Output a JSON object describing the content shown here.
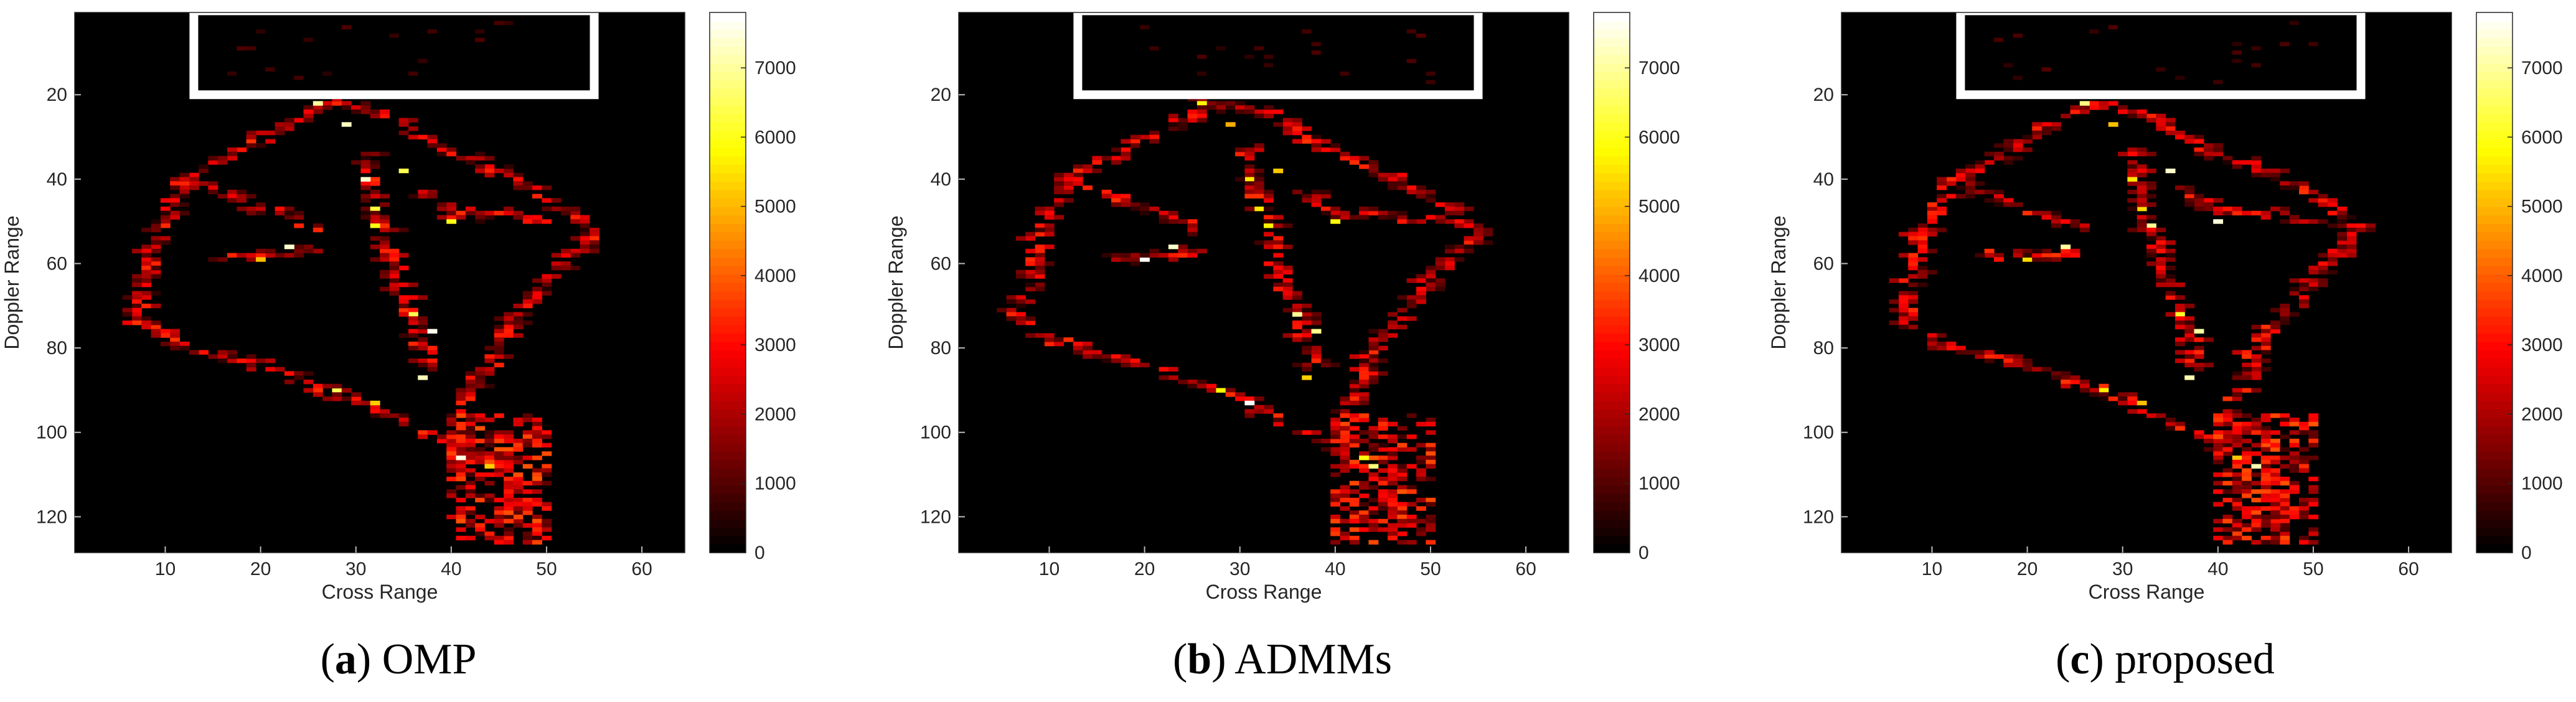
{
  "chart_data": [
    {
      "type": "heatmap",
      "caption_letter": "a",
      "caption_text": " OMP",
      "xlabel": "Cross Range",
      "ylabel": "Doppler Range",
      "xlim": [
        0.5,
        64.5
      ],
      "ylim": [
        0.5,
        128.5
      ],
      "xticks": [
        10,
        20,
        30,
        40,
        50,
        60
      ],
      "yticks": [
        20,
        40,
        60,
        80,
        100,
        120
      ],
      "colorbar": {
        "min": 0,
        "max": 7800,
        "ticks": [
          0,
          1000,
          2000,
          3000,
          4000,
          5000,
          6000,
          7000
        ],
        "colormap": "hot"
      },
      "annotation_box": {
        "x": [
          13,
          55
        ],
        "y": [
          1,
          20
        ]
      },
      "variant_seed": 11
    },
    {
      "type": "heatmap",
      "caption_letter": "b",
      "caption_text": " ADMMs",
      "xlabel": "Cross Range",
      "ylabel": "Doppler Range",
      "xlim": [
        0.5,
        64.5
      ],
      "ylim": [
        0.5,
        128.5
      ],
      "xticks": [
        10,
        20,
        30,
        40,
        50,
        60
      ],
      "yticks": [
        20,
        40,
        60,
        80,
        100,
        120
      ],
      "colorbar": {
        "min": 0,
        "max": 7800,
        "ticks": [
          0,
          1000,
          2000,
          3000,
          4000,
          5000,
          6000,
          7000
        ],
        "colormap": "hot"
      },
      "annotation_box": {
        "x": [
          13,
          55
        ],
        "y": [
          1,
          20
        ]
      },
      "variant_seed": 23
    },
    {
      "type": "heatmap",
      "caption_letter": "c",
      "caption_text": " proposed",
      "xlabel": "Cross Range",
      "ylabel": "Doppler Range",
      "xlim": [
        0.5,
        64.5
      ],
      "ylim": [
        0.5,
        128.5
      ],
      "xticks": [
        10,
        20,
        30,
        40,
        50,
        60
      ],
      "yticks": [
        20,
        40,
        60,
        80,
        100,
        120
      ],
      "colorbar": {
        "min": 0,
        "max": 7800,
        "ticks": [
          0,
          1000,
          2000,
          3000,
          4000,
          5000,
          6000,
          7000
        ],
        "colormap": "hot"
      },
      "annotation_box": {
        "x": [
          13,
          55
        ],
        "y": [
          1,
          20
        ]
      },
      "variant_seed": 37
    }
  ],
  "scatterer_paths": [
    {
      "name": "left-outer-arc",
      "points": [
        [
          27,
          22
        ],
        [
          18,
          33
        ],
        [
          12,
          40
        ],
        [
          9,
          55
        ],
        [
          7,
          72
        ],
        [
          10,
          78
        ],
        [
          20,
          84
        ],
        [
          30,
          92
        ],
        [
          40,
          103
        ]
      ]
    },
    {
      "name": "right-outer-arc",
      "points": [
        [
          27,
          22
        ],
        [
          33,
          24
        ],
        [
          38,
          32
        ],
        [
          44,
          37
        ],
        [
          52,
          47
        ],
        [
          55,
          53
        ],
        [
          50,
          64
        ],
        [
          45,
          78
        ],
        [
          41,
          96
        ],
        [
          41,
          105
        ]
      ]
    },
    {
      "name": "upper-left-branch",
      "points": [
        [
          12,
          40
        ],
        [
          18,
          45
        ],
        [
          23,
          49
        ],
        [
          26,
          52
        ]
      ]
    },
    {
      "name": "mid-left-branch",
      "points": [
        [
          16,
          58
        ],
        [
          22,
          58
        ],
        [
          26,
          57
        ]
      ]
    },
    {
      "name": "inner-stem",
      "points": [
        [
          31,
          33
        ],
        [
          32,
          45
        ],
        [
          34,
          60
        ],
        [
          36,
          72
        ],
        [
          38,
          84
        ]
      ]
    },
    {
      "name": "right-branch",
      "points": [
        [
          37,
          43
        ],
        [
          40,
          48
        ],
        [
          45,
          48
        ],
        [
          50,
          50
        ]
      ]
    },
    {
      "name": "trunk",
      "points": [
        [
          45,
          102
        ],
        [
          46,
          110
        ],
        [
          47,
          125
        ]
      ]
    }
  ],
  "bright_points": [
    [
      29,
      27
    ],
    [
      31,
      40
    ],
    [
      32,
      47
    ],
    [
      33,
      51
    ],
    [
      36,
      72
    ],
    [
      38,
      76
    ],
    [
      37,
      87
    ],
    [
      40,
      50
    ],
    [
      35,
      38
    ],
    [
      20,
      59
    ],
    [
      24,
      56
    ],
    [
      28,
      90
    ],
    [
      32,
      93
    ],
    [
      26,
      22
    ],
    [
      42,
      106
    ],
    [
      44,
      108
    ]
  ]
}
